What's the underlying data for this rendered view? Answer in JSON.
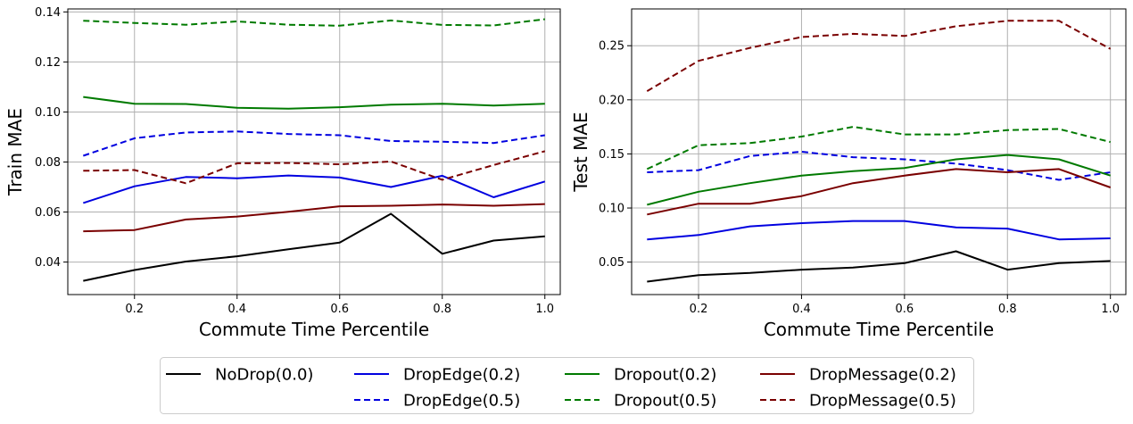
{
  "chart_data": [
    {
      "type": "line",
      "xlabel": "Commute Time Percentile",
      "ylabel": "Train MAE",
      "xlim": [
        0.07,
        1.03
      ],
      "ylim": [
        0.027,
        0.1412
      ],
      "xticks": [
        0.2,
        0.4,
        0.6,
        0.8,
        1.0
      ],
      "xtick_labels": [
        "0.2",
        "0.4",
        "0.6",
        "0.8",
        "1.0"
      ],
      "yticks": [
        0.04,
        0.06,
        0.08,
        0.1,
        0.12,
        0.14
      ],
      "ytick_labels": [
        "0.04",
        "0.06",
        "0.08",
        "0.10",
        "0.12",
        "0.14"
      ],
      "grid": true,
      "x": [
        0.1,
        0.2,
        0.3,
        0.4,
        0.5,
        0.6,
        0.7,
        0.8,
        0.9,
        1.0
      ],
      "series": [
        {
          "name": "NoDrop(0.0)",
          "color": "#000000",
          "dashed": false,
          "values": [
            0.0325,
            0.0368,
            0.0402,
            0.0423,
            0.0451,
            0.0478,
            0.0593,
            0.0433,
            0.0486,
            0.0503
          ]
        },
        {
          "name": "DropEdge(0.2)",
          "color": "#0000e0",
          "dashed": false,
          "values": [
            0.0636,
            0.0703,
            0.074,
            0.0735,
            0.0746,
            0.0738,
            0.07,
            0.0745,
            0.0659,
            0.0722
          ]
        },
        {
          "name": "DropEdge(0.5)",
          "color": "#0000e0",
          "dashed": true,
          "values": [
            0.0825,
            0.0895,
            0.0918,
            0.0922,
            0.0912,
            0.0907,
            0.0884,
            0.0881,
            0.0876,
            0.0907
          ]
        },
        {
          "name": "Dropout(0.2)",
          "color": "#007a00",
          "dashed": false,
          "values": [
            0.106,
            0.1033,
            0.1032,
            0.1017,
            0.1013,
            0.1019,
            0.1029,
            0.1033,
            0.1026,
            0.1033
          ]
        },
        {
          "name": "Dropout(0.5)",
          "color": "#007a00",
          "dashed": true,
          "values": [
            0.1365,
            0.1356,
            0.1349,
            0.1362,
            0.1349,
            0.1345,
            0.1366,
            0.1348,
            0.1346,
            0.1371
          ]
        },
        {
          "name": "DropMessage(0.2)",
          "color": "#7a0000",
          "dashed": false,
          "values": [
            0.0523,
            0.0528,
            0.057,
            0.0582,
            0.0601,
            0.0623,
            0.0625,
            0.063,
            0.0625,
            0.0632
          ]
        },
        {
          "name": "DropMessage(0.5)",
          "color": "#7a0000",
          "dashed": true,
          "values": [
            0.0765,
            0.0768,
            0.0715,
            0.0795,
            0.0796,
            0.0791,
            0.0802,
            0.0729,
            0.0788,
            0.0843
          ]
        }
      ]
    },
    {
      "type": "line",
      "xlabel": "Commute Time Percentile",
      "ylabel": "Test MAE",
      "xlim": [
        0.07,
        1.03
      ],
      "ylim": [
        0.02,
        0.284
      ],
      "xticks": [
        0.2,
        0.4,
        0.6,
        0.8,
        1.0
      ],
      "xtick_labels": [
        "0.2",
        "0.4",
        "0.6",
        "0.8",
        "1.0"
      ],
      "yticks": [
        0.05,
        0.1,
        0.15,
        0.2,
        0.25
      ],
      "ytick_labels": [
        "0.05",
        "0.10",
        "0.15",
        "0.20",
        "0.25"
      ],
      "grid": true,
      "x": [
        0.1,
        0.2,
        0.3,
        0.4,
        0.5,
        0.6,
        0.7,
        0.8,
        0.9,
        1.0
      ],
      "series": [
        {
          "name": "NoDrop(0.0)",
          "color": "#000000",
          "dashed": false,
          "values": [
            0.032,
            0.038,
            0.04,
            0.043,
            0.045,
            0.049,
            0.06,
            0.043,
            0.049,
            0.051
          ]
        },
        {
          "name": "DropEdge(0.2)",
          "color": "#0000e0",
          "dashed": false,
          "values": [
            0.071,
            0.075,
            0.083,
            0.086,
            0.088,
            0.088,
            0.082,
            0.081,
            0.071,
            0.072
          ]
        },
        {
          "name": "DropEdge(0.5)",
          "color": "#0000e0",
          "dashed": true,
          "values": [
            0.133,
            0.135,
            0.148,
            0.152,
            0.147,
            0.145,
            0.141,
            0.135,
            0.126,
            0.133
          ]
        },
        {
          "name": "Dropout(0.2)",
          "color": "#007a00",
          "dashed": false,
          "values": [
            0.103,
            0.115,
            0.123,
            0.13,
            0.134,
            0.137,
            0.145,
            0.149,
            0.145,
            0.13
          ]
        },
        {
          "name": "Dropout(0.5)",
          "color": "#007a00",
          "dashed": true,
          "values": [
            0.136,
            0.158,
            0.16,
            0.166,
            0.175,
            0.168,
            0.168,
            0.172,
            0.173,
            0.161
          ]
        },
        {
          "name": "DropMessage(0.2)",
          "color": "#7a0000",
          "dashed": false,
          "values": [
            0.094,
            0.104,
            0.104,
            0.111,
            0.123,
            0.13,
            0.136,
            0.133,
            0.136,
            0.119
          ]
        },
        {
          "name": "DropMessage(0.5)",
          "color": "#7a0000",
          "dashed": true,
          "values": [
            0.208,
            0.236,
            0.248,
            0.258,
            0.261,
            0.259,
            0.268,
            0.273,
            0.273,
            0.247
          ]
        }
      ]
    }
  ],
  "legend": {
    "placement": "bottom-center",
    "columns": 4,
    "entries": [
      "NoDrop(0.0)",
      "DropEdge(0.2)",
      "DropEdge(0.5)",
      "Dropout(0.2)",
      "Dropout(0.5)",
      "DropMessage(0.2)",
      "DropMessage(0.5)"
    ]
  }
}
